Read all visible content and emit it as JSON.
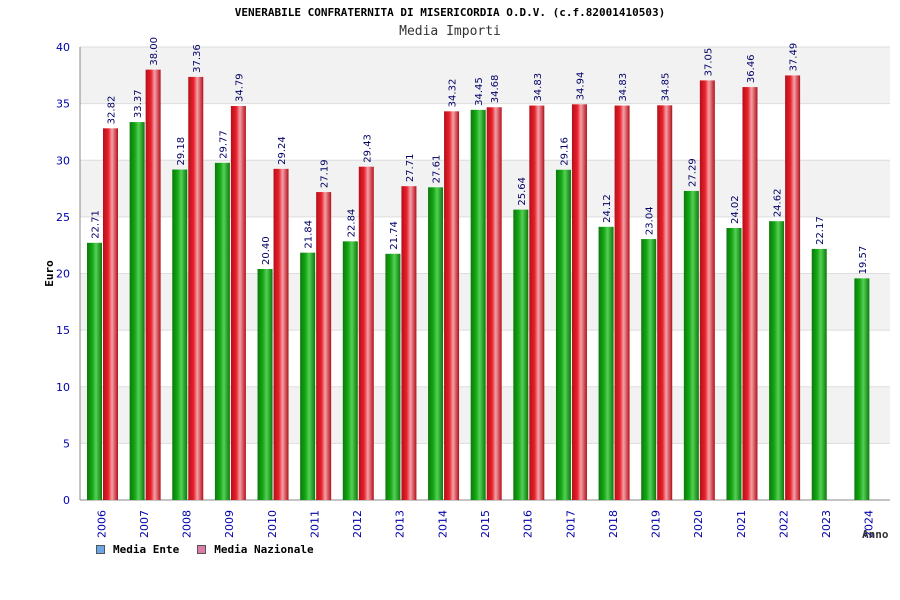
{
  "title": "VENERABILE CONFRATERNITA DI MISERICORDIA O.D.V. (c.f.82001410503)",
  "subtitle": "Media Importi",
  "legend": {
    "items": [
      {
        "label": "Media Ente",
        "color": "#6aa7e6"
      },
      {
        "label": "Media Nazionale",
        "color": "#e07aa8"
      }
    ]
  },
  "colors": {
    "ente": "#16a616",
    "nazionale": "#e8202a",
    "band": "#f2f2f2",
    "axis_text": "#0000aa",
    "label_text": "#000066"
  },
  "chart_data": {
    "type": "bar",
    "title": "VENERABILE CONFRATERNITA DI MISERICORDIA O.D.V. (c.f.82001410503)",
    "subtitle": "Media Importi",
    "xlabel": "Anno",
    "ylabel": "Euro",
    "ylim": [
      0,
      40
    ],
    "yticks": [
      0,
      5,
      10,
      15,
      20,
      25,
      30,
      35,
      40
    ],
    "categories": [
      "2006",
      "2007",
      "2008",
      "2009",
      "2010",
      "2011",
      "2012",
      "2013",
      "2014",
      "2015",
      "2016",
      "2017",
      "2018",
      "2019",
      "2020",
      "2021",
      "2022",
      "2023",
      "2024"
    ],
    "series": [
      {
        "name": "Media Ente",
        "values": [
          22.71,
          33.37,
          29.18,
          29.77,
          20.4,
          21.84,
          22.84,
          21.74,
          27.61,
          34.45,
          25.64,
          29.16,
          24.12,
          23.04,
          27.29,
          24.02,
          24.62,
          22.17,
          19.57
        ],
        "labels": [
          "22.71",
          "33.37",
          "29.18",
          "29.77",
          "20.40",
          "21.84",
          "22.84",
          "21.74",
          "27.61",
          "34.45",
          "25.64",
          "29.16",
          "24.12",
          "23.04",
          "27.29",
          "24.02",
          "24.62",
          "22.17",
          "19.57"
        ]
      },
      {
        "name": "Media Nazionale",
        "values": [
          32.82,
          38.0,
          37.36,
          34.79,
          29.24,
          27.19,
          29.43,
          27.71,
          34.32,
          34.68,
          34.83,
          34.94,
          34.83,
          34.85,
          37.05,
          36.46,
          37.49,
          null,
          null
        ],
        "labels": [
          "32.82",
          "38.00",
          "37.36",
          "34.79",
          "29.24",
          "27.19",
          "29.43",
          "27.71",
          "34.32",
          "34.68",
          "34.83",
          "34.94",
          "34.83",
          "34.85",
          "37.05",
          "36.46",
          "37.49",
          "",
          ""
        ]
      }
    ],
    "grid": true,
    "legend_position": "bottom-left"
  }
}
